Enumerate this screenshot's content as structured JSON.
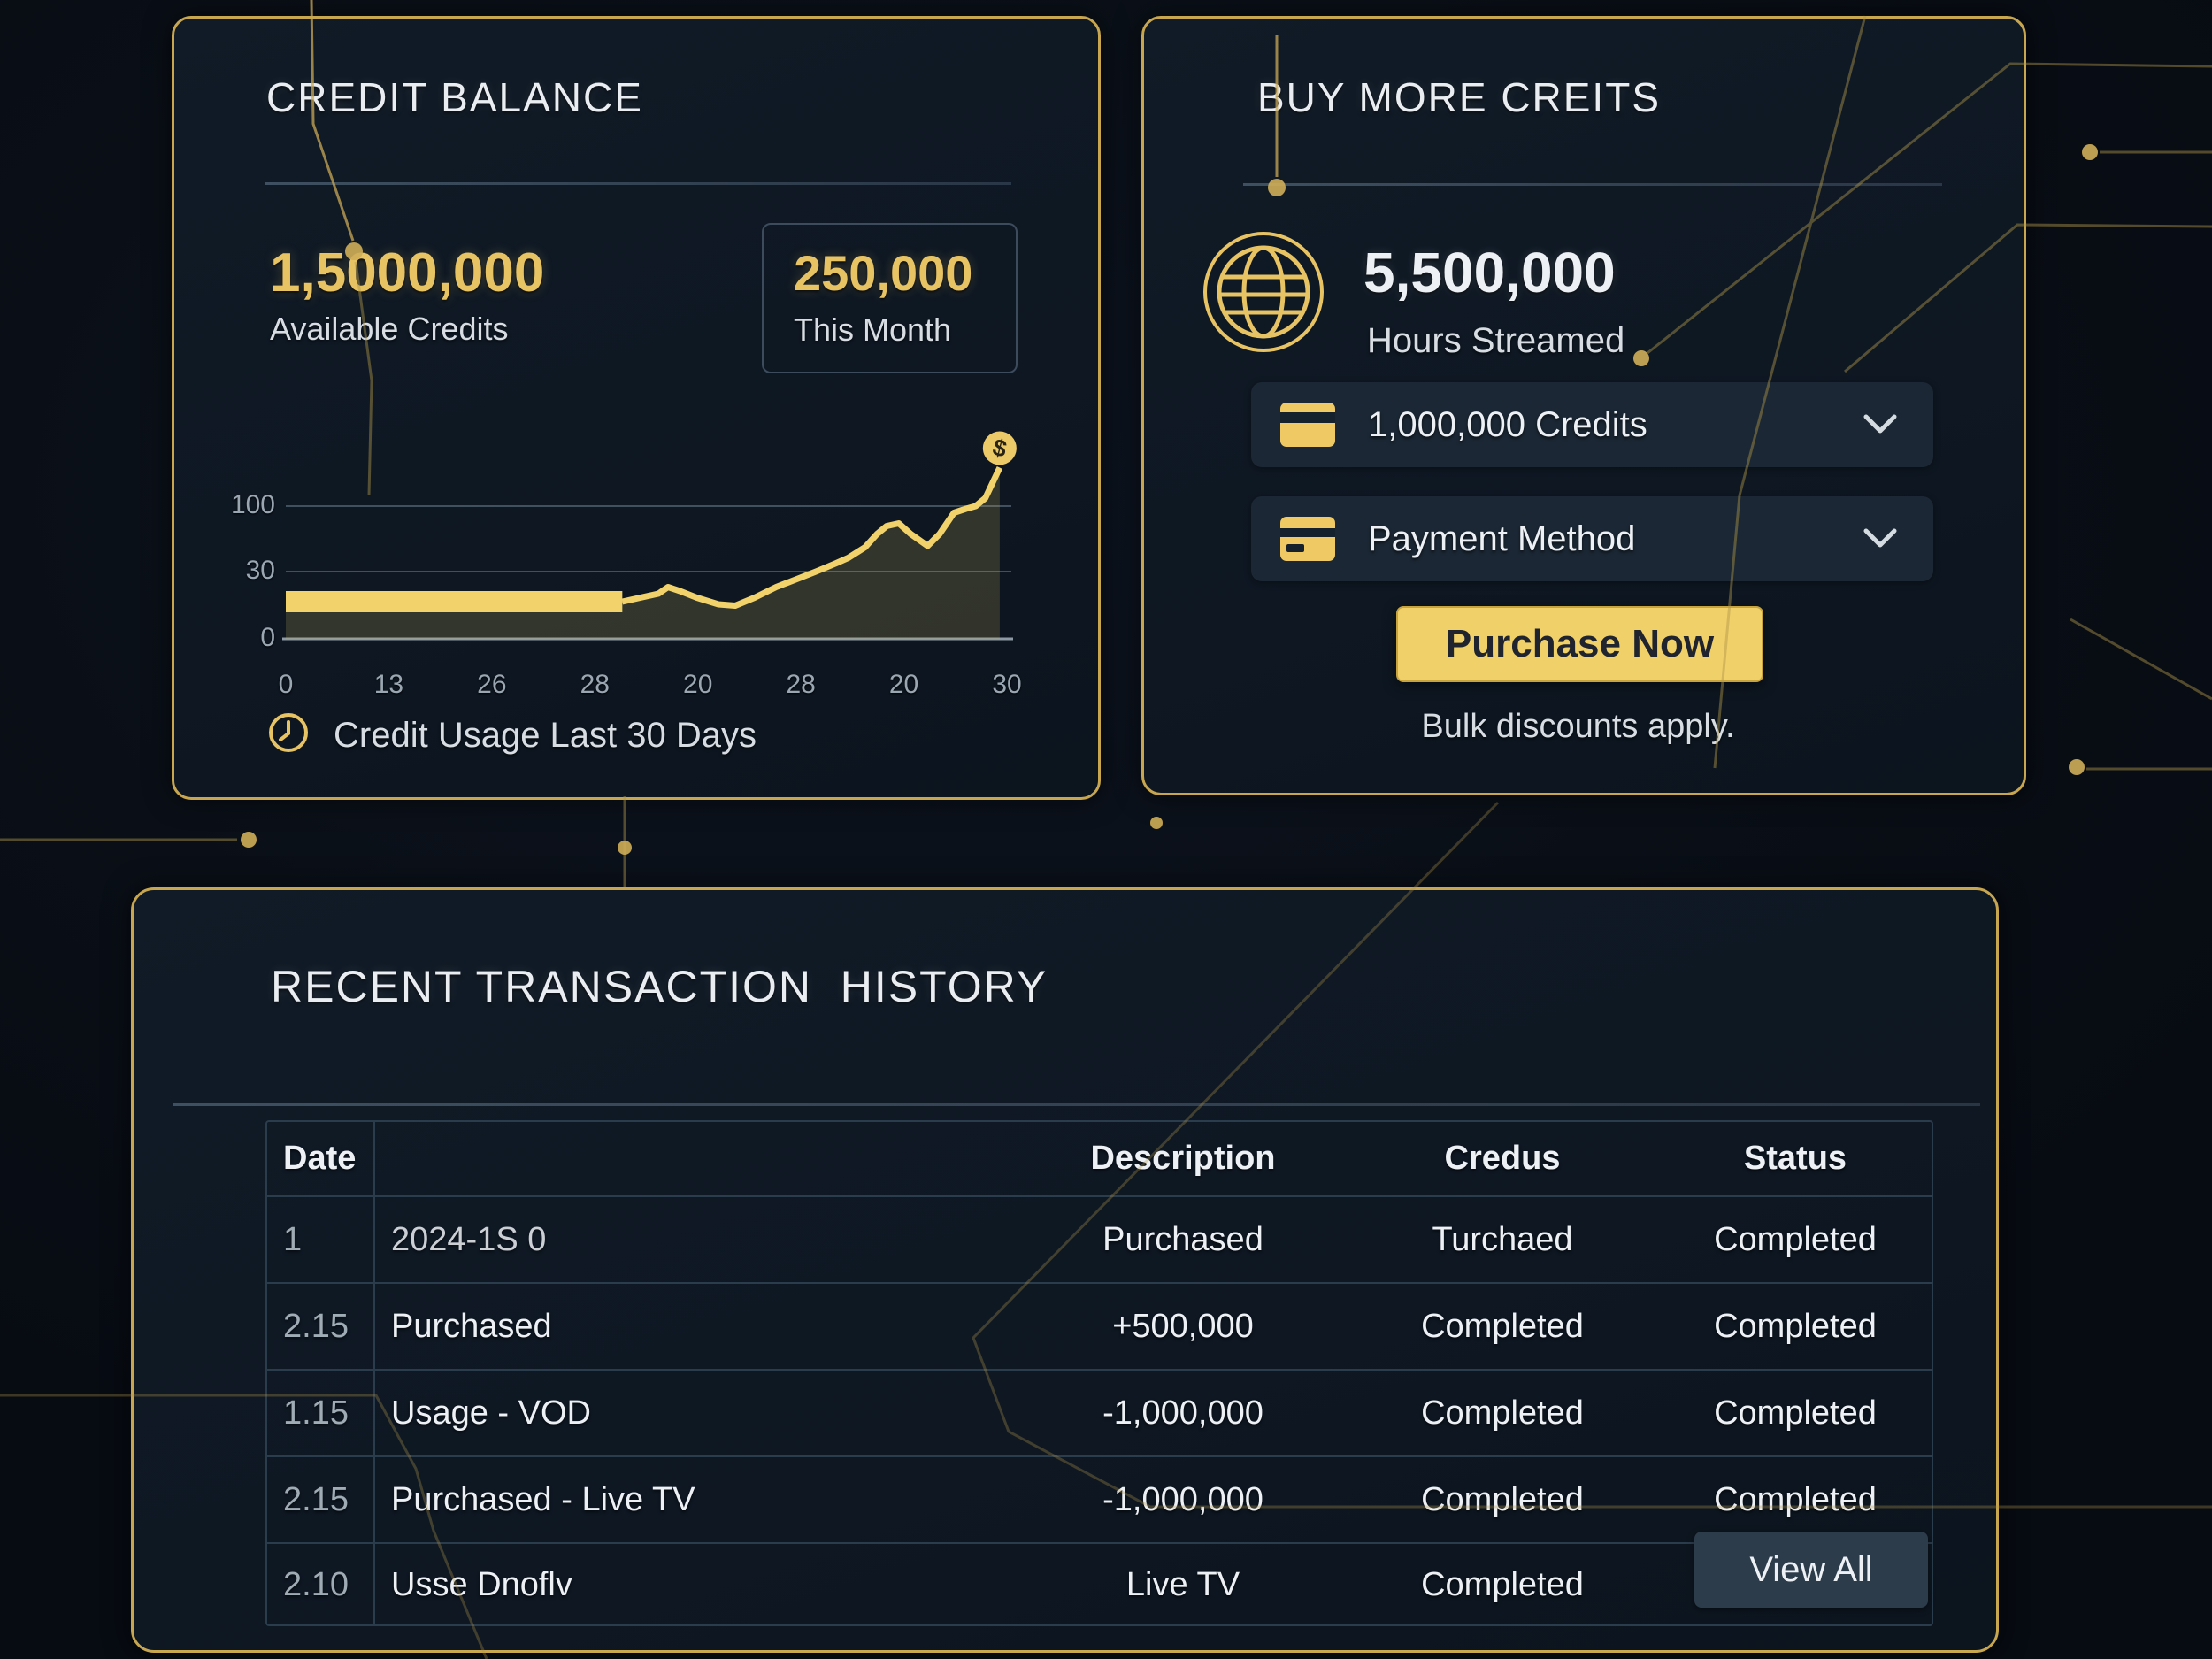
{
  "colors": {
    "accent_gold": "#e7c364",
    "button_gold": "#f0d069",
    "card_bg": "#0f1925",
    "page_bg": "#0a0f17",
    "text": "#edf1f5",
    "muted": "#9fabb5",
    "grid": "#2b3c4c"
  },
  "icons": {
    "globe-icon": "wireframe globe",
    "clock-icon": "clock face",
    "credit-card-icon": "card with stripe",
    "chevron-down-icon": "∨",
    "coin-icon": "$ coin",
    "marker-coin-icon": "$ coin"
  },
  "credit_card": {
    "title": "CREDIT BALANCE",
    "available_value": "1,5000,000",
    "available_label": "Available Credits",
    "month_value": "250,000",
    "month_label": "This Month",
    "caption": "Credit Usage Last 30 Days"
  },
  "chart_data": {
    "type": "area",
    "title": "Credit Usage Last 30 Days",
    "xlabel": "",
    "ylabel": "",
    "x_range": [
      0,
      30
    ],
    "y_ticks": [
      "100",
      "30",
      "0"
    ],
    "x_ticks": [
      "0",
      "13",
      "26",
      "28",
      "20",
      "28",
      "20",
      "30"
    ],
    "grid": "horizontal",
    "legend": "none",
    "series": [
      {
        "name": "Credit Usage",
        "points": [
          [
            0,
            28
          ],
          [
            14,
            28
          ],
          [
            14.5,
            30
          ],
          [
            15.5,
            34
          ],
          [
            15.9,
            39
          ],
          [
            16.4,
            36
          ],
          [
            17.1,
            31
          ],
          [
            18,
            26
          ],
          [
            18.7,
            25
          ],
          [
            19.5,
            31
          ],
          [
            20.4,
            39
          ],
          [
            21.4,
            46
          ],
          [
            22.1,
            51
          ],
          [
            22.9,
            57
          ],
          [
            23.4,
            61
          ],
          [
            24.1,
            69
          ],
          [
            24.6,
            79
          ],
          [
            25,
            85
          ],
          [
            25.5,
            87
          ],
          [
            26,
            79
          ],
          [
            26.7,
            70
          ],
          [
            27.2,
            79
          ],
          [
            27.8,
            95
          ],
          [
            28.3,
            98
          ],
          [
            28.7,
            100
          ],
          [
            29.1,
            106
          ],
          [
            29.7,
            129
          ]
        ]
      }
    ],
    "end_marker": {
      "day": 29.7,
      "value": 129,
      "icon": "coin"
    }
  },
  "buy_card": {
    "title": "BUY MORE CREITS",
    "hours_value": "5,500,000",
    "hours_label": "Hours Streamed",
    "credits_option": "1,000,000 Credits",
    "payment_label": "Payment Method",
    "purchase_label": "Purchase Now",
    "note": "Bulk discounts apply."
  },
  "transactions": {
    "title": "RECENT TRANSACTION  HISTORY",
    "headers": {
      "date": "Date",
      "description": "Description",
      "credus": "Credus",
      "status": "Status"
    },
    "rows": [
      {
        "date": "1",
        "desc": "2024-1S 0",
        "amount": "Purchased",
        "credus": "Turchaed",
        "status": "Completed"
      },
      {
        "date": "2.15",
        "desc": "Purchased",
        "amount": "+500,000",
        "credus": "Completed",
        "status": "Completed"
      },
      {
        "date": "1.15",
        "desc": "Usage - VOD",
        "amount": "-1,000,000",
        "credus": "Completed",
        "status": "Completed"
      },
      {
        "date": "2.15",
        "desc": "Purchased - Live TV",
        "amount": "-1,000,000",
        "credus": "Completed",
        "status": "Completed"
      },
      {
        "date": "2.10",
        "desc": "Usse Dnoflv",
        "amount": "Live TV",
        "credus": "Completed",
        "status": ""
      }
    ],
    "view_all": "View All"
  }
}
